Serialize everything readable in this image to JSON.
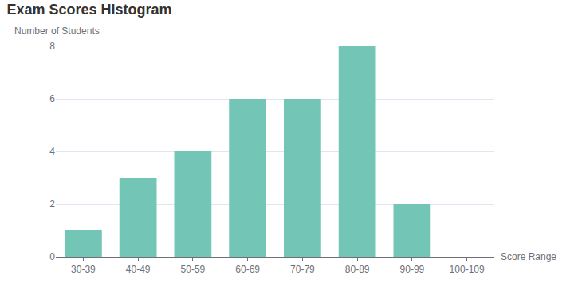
{
  "chart_data": {
    "type": "bar",
    "title": "Exam Scores Histogram",
    "x_label": "Score Range",
    "y_label": "Number of Students",
    "categories": [
      "30-39",
      "40-49",
      "50-59",
      "60-69",
      "70-79",
      "80-89",
      "90-99",
      "100-109"
    ],
    "values": [
      1,
      3,
      4,
      6,
      6,
      8,
      2,
      0
    ],
    "color": "#73c6b6",
    "ylim": [
      0,
      8
    ],
    "yticks": [
      0,
      2,
      4,
      6,
      8
    ],
    "grid": true
  }
}
